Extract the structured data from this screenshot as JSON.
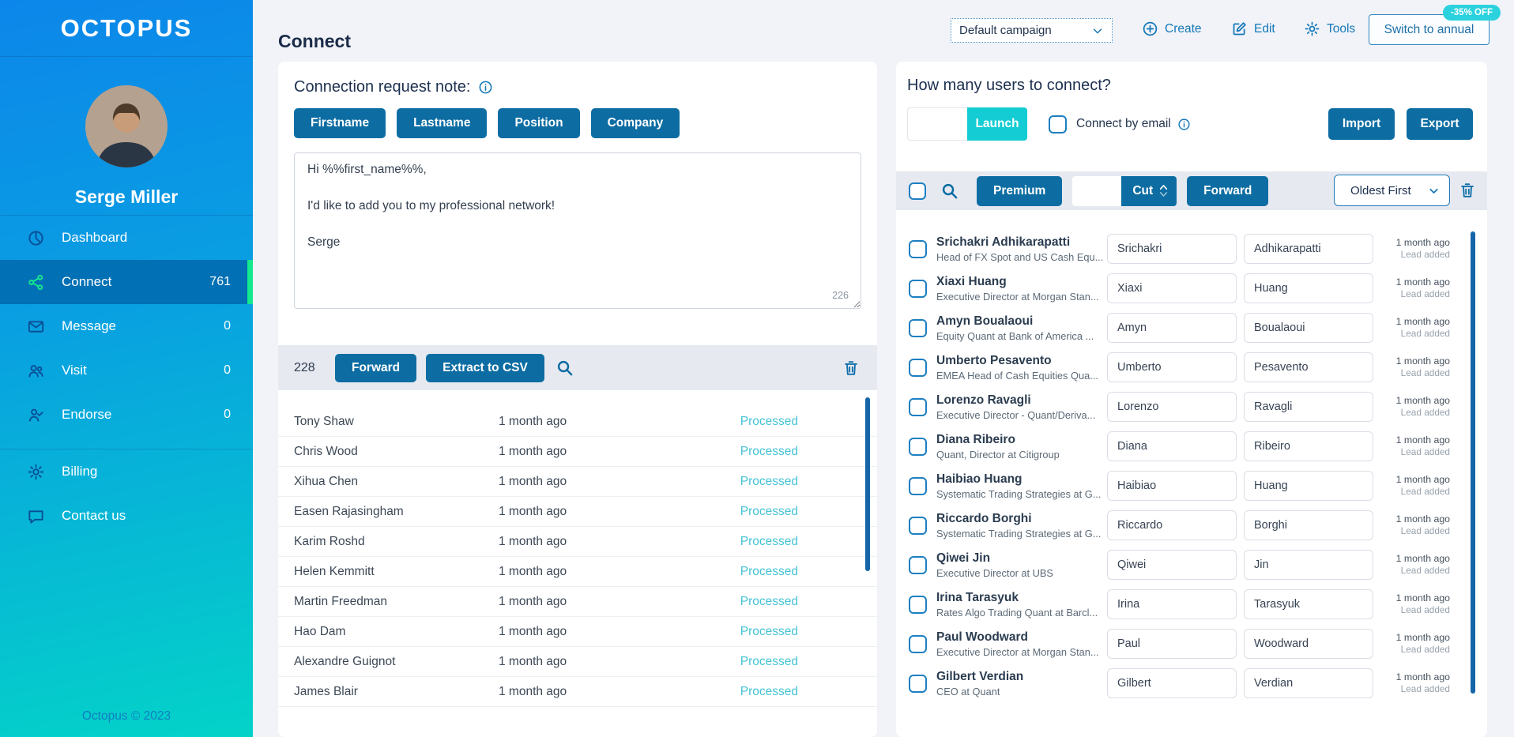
{
  "sidebar": {
    "logo": "OCTOPUS",
    "user_name": "Serge Miller",
    "menu": [
      {
        "label": "Dashboard",
        "count": "",
        "icon": "dashboard",
        "active": false
      },
      {
        "label": "Connect",
        "count": "761",
        "icon": "share",
        "active": true
      },
      {
        "label": "Message",
        "count": "0",
        "icon": "envelope",
        "active": false
      },
      {
        "label": "Visit",
        "count": "0",
        "icon": "people",
        "active": false
      },
      {
        "label": "Endorse",
        "count": "0",
        "icon": "person-check",
        "active": false
      }
    ],
    "secondary_menu": [
      {
        "label": "Billing",
        "icon": "gear"
      },
      {
        "label": "Contact us",
        "icon": "chat"
      }
    ],
    "footer": "Octopus © 2023"
  },
  "header": {
    "title": "Connect",
    "campaign_select": {
      "value": "Default campaign"
    },
    "create_label": "Create",
    "edit_label": "Edit",
    "tools_label": "Tools",
    "switch_annual_label": "Switch to annual",
    "discount_badge": "-35% OFF"
  },
  "note_panel": {
    "title": "Connection request note:",
    "variable_buttons": [
      {
        "label": "Firstname"
      },
      {
        "label": "Lastname"
      },
      {
        "label": "Position"
      },
      {
        "label": "Company"
      }
    ],
    "note_text": "Hi %%first_name%%,\n\nI'd like to add you to my professional network!\n\nSerge",
    "char_count": "226",
    "toolbar": {
      "count": "228",
      "forward_label": "Forward",
      "extract_label": "Extract to CSV"
    },
    "processed_rows": [
      {
        "name": "Tony Shaw",
        "time": "1 month ago",
        "status": "Processed"
      },
      {
        "name": "Chris Wood",
        "time": "1 month ago",
        "status": "Processed"
      },
      {
        "name": "Xihua Chen",
        "time": "1 month ago",
        "status": "Processed"
      },
      {
        "name": "Easen Rajasingham",
        "time": "1 month ago",
        "status": "Processed"
      },
      {
        "name": "Karim Roshd",
        "time": "1 month ago",
        "status": "Processed"
      },
      {
        "name": "Helen Kemmitt",
        "time": "1 month ago",
        "status": "Processed"
      },
      {
        "name": "Martin Freedman",
        "time": "1 month ago",
        "status": "Processed"
      },
      {
        "name": "Hao Dam",
        "time": "1 month ago",
        "status": "Processed"
      },
      {
        "name": "Alexandre Guignot",
        "time": "1 month ago",
        "status": "Processed"
      },
      {
        "name": "James Blair",
        "time": "1 month ago",
        "status": "Processed"
      }
    ]
  },
  "connect_panel": {
    "title": "How many users to connect?",
    "launch_label": "Launch",
    "connect_by_email_label": "Connect by email",
    "import_label": "Import",
    "export_label": "Export",
    "toolbar": {
      "premium_label": "Premium",
      "cut_label": "Cut",
      "forward_label": "Forward",
      "sort_value": "Oldest First"
    },
    "users": [
      {
        "name": "Srichakri Adhikarapatti",
        "subtitle": "Head of FX Spot and US Cash Equ...",
        "first": "Srichakri",
        "last": "Adhikarapatti",
        "time": "1 month ago",
        "status": "Lead added"
      },
      {
        "name": "Xiaxi Huang",
        "subtitle": "Executive Director at Morgan Stan...",
        "first": "Xiaxi",
        "last": "Huang",
        "time": "1 month ago",
        "status": "Lead added"
      },
      {
        "name": "Amyn Boualaoui",
        "subtitle": "Equity Quant at Bank of America ...",
        "first": "Amyn",
        "last": "Boualaoui",
        "time": "1 month ago",
        "status": "Lead added"
      },
      {
        "name": "Umberto Pesavento",
        "subtitle": "EMEA Head of Cash Equities Qua...",
        "first": "Umberto",
        "last": "Pesavento",
        "time": "1 month ago",
        "status": "Lead added"
      },
      {
        "name": "Lorenzo Ravagli",
        "subtitle": "Executive Director - Quant/Deriva...",
        "first": "Lorenzo",
        "last": "Ravagli",
        "time": "1 month ago",
        "status": "Lead added"
      },
      {
        "name": "Diana Ribeiro",
        "subtitle": "Quant, Director at Citigroup",
        "first": "Diana",
        "last": "Ribeiro",
        "time": "1 month ago",
        "status": "Lead added"
      },
      {
        "name": "Haibiao Huang",
        "subtitle": "Systematic Trading Strategies at G...",
        "first": "Haibiao",
        "last": "Huang",
        "time": "1 month ago",
        "status": "Lead added"
      },
      {
        "name": "Riccardo Borghi",
        "subtitle": "Systematic Trading Strategies at G...",
        "first": "Riccardo",
        "last": "Borghi",
        "time": "1 month ago",
        "status": "Lead added"
      },
      {
        "name": "Qiwei Jin",
        "subtitle": "Executive Director at UBS",
        "first": "Qiwei",
        "last": "Jin",
        "time": "1 month ago",
        "status": "Lead added"
      },
      {
        "name": "Irina Tarasyuk",
        "subtitle": "Rates Algo Trading Quant at Barcl...",
        "first": "Irina",
        "last": "Tarasyuk",
        "time": "1 month ago",
        "status": "Lead added"
      },
      {
        "name": "Paul Woodward",
        "subtitle": "Executive Director at Morgan Stan...",
        "first": "Paul",
        "last": "Woodward",
        "time": "1 month ago",
        "status": "Lead added"
      },
      {
        "name": "Gilbert Verdian",
        "subtitle": "CEO at Quant",
        "first": "Gilbert",
        "last": "Verdian",
        "time": "1 month ago",
        "status": "Lead added"
      }
    ]
  },
  "colors": {
    "sidebar_top": "#0c86ea",
    "sidebar_bottom": "#04d3c8",
    "active_row": "#0270b4",
    "accent_green": "#15e98e",
    "primary_button": "#0d6da3",
    "launch_cyan": "#14ccd3",
    "badge_cyan": "#2bd2de",
    "processed_teal": "#44c3d4",
    "link_blue": "#1478b8"
  }
}
